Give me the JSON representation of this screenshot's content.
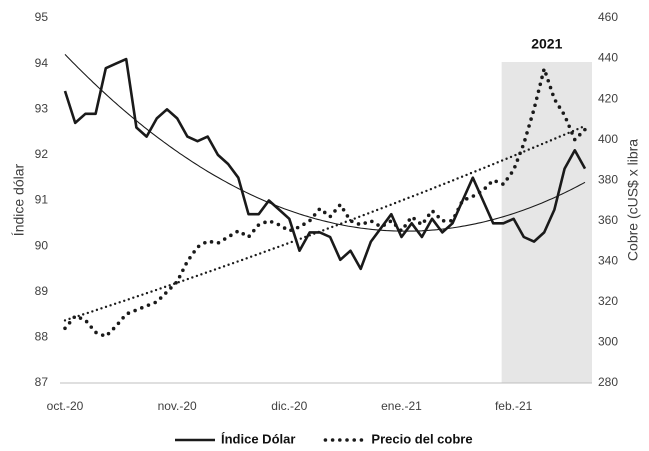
{
  "chart_data": {
    "type": "line",
    "y_label": "Índice dólar",
    "y2_label": "Cobre (cUS$ x libra",
    "categories": [
      "oct.-20",
      null,
      null,
      null,
      null,
      null,
      null,
      null,
      null,
      null,
      null,
      "nov.-20",
      null,
      null,
      null,
      null,
      null,
      null,
      null,
      null,
      null,
      null,
      "dic.-20",
      null,
      null,
      null,
      null,
      null,
      null,
      null,
      null,
      null,
      null,
      "ene.-21",
      null,
      null,
      null,
      null,
      null,
      null,
      null,
      null,
      null,
      null,
      "feb.-21",
      null,
      null,
      null,
      null,
      null,
      null,
      null
    ],
    "series": [
      {
        "name": "Índice Dólar",
        "color": "#1a1a1a",
        "style": "solid",
        "axis": "y",
        "values": [
          93.4,
          92.7,
          92.9,
          92.9,
          93.9,
          94.0,
          94.1,
          92.6,
          92.4,
          92.8,
          93.0,
          92.8,
          92.4,
          92.3,
          92.4,
          92.0,
          91.8,
          91.5,
          90.7,
          90.7,
          91.0,
          90.8,
          90.6,
          89.9,
          90.3,
          90.3,
          90.2,
          89.7,
          89.9,
          89.5,
          90.1,
          90.4,
          90.7,
          90.2,
          90.5,
          90.2,
          90.6,
          90.3,
          90.5,
          91.0,
          91.5,
          91.0,
          90.5,
          90.5,
          90.6,
          90.2,
          90.1,
          90.3,
          90.8,
          91.7,
          92.1,
          91.7
        ]
      },
      {
        "name": "Precio del cobre",
        "color": "#1a1a1a",
        "style": "dotted",
        "axis": "y2",
        "values": [
          307,
          313,
          311,
          305,
          303,
          308,
          314,
          316,
          318,
          320,
          325,
          330,
          340,
          347,
          350,
          349,
          352,
          355,
          352,
          358,
          360,
          358,
          355,
          357,
          360,
          366,
          362,
          368,
          360,
          358,
          360,
          357,
          360,
          355,
          362,
          358,
          365,
          360,
          360,
          370,
          372,
          375,
          380,
          378,
          385,
          398,
          415,
          435,
          420,
          412,
          400,
          405
        ]
      }
    ],
    "ylim": [
      87,
      95
    ],
    "yticks": [
      87,
      88,
      89,
      90,
      91,
      92,
      93,
      94,
      95
    ],
    "y2lim": [
      280,
      460
    ],
    "y2ticks": [
      280,
      300,
      320,
      340,
      360,
      380,
      400,
      420,
      440,
      460
    ],
    "highlight": {
      "label": "2021",
      "from": "feb.-21",
      "color": "#e6e6e6"
    },
    "trendlines": true,
    "legend": "bottom"
  }
}
